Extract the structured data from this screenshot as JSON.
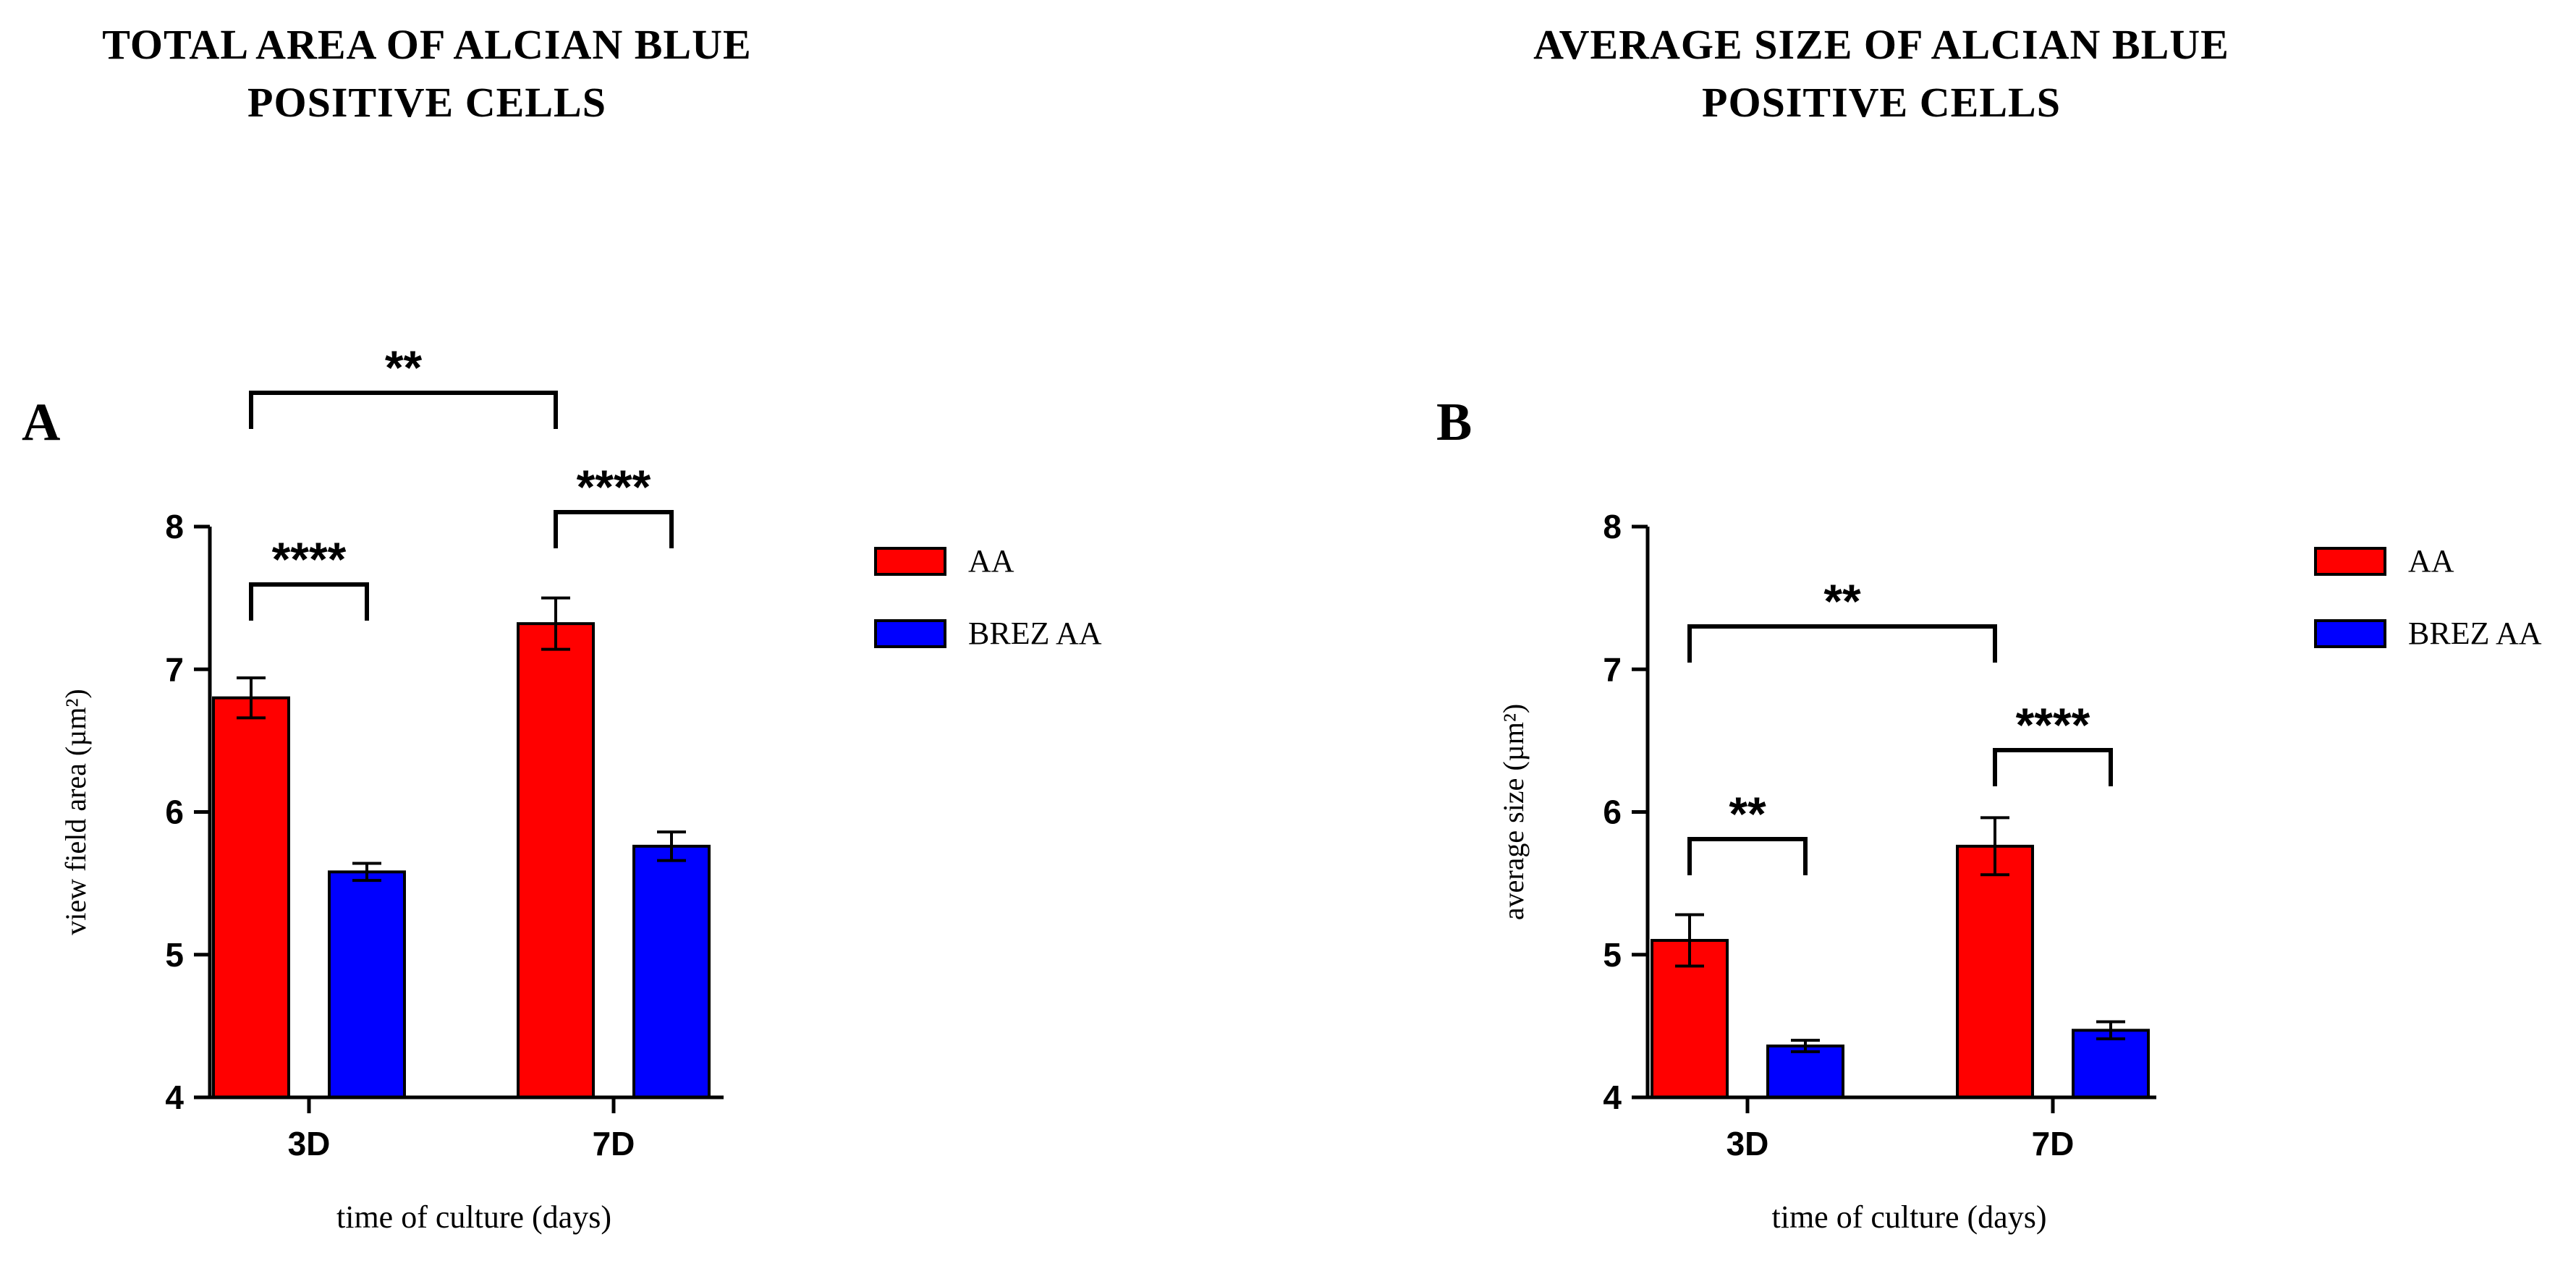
{
  "titles": {
    "left": [
      "TOTAL AREA OF ALCIAN BLUE",
      "POSITIVE CELLS"
    ],
    "right": [
      "AVERAGE SIZE OF ALCIAN BLUE",
      "POSITIVE CELLS"
    ]
  },
  "colors": {
    "AA": "#ff0000",
    "BREZ AA": "#0000ff",
    "axis": "#000000"
  },
  "chart_data": [
    {
      "type": "bar",
      "panel": "A",
      "title": "TOTAL AREA OF ALCIAN BLUE POSITIVE CELLS",
      "xlabel": "time of culture (days)",
      "ylabel": "view field area (µm²)",
      "ylim": [
        4,
        8
      ],
      "yticks": [
        "4",
        "5",
        "6",
        "7",
        "8"
      ],
      "categories": [
        "3D",
        "7D"
      ],
      "legend": [
        "AA",
        "BREZ AA"
      ],
      "series": [
        {
          "name": "AA",
          "values": [
            6.8,
            7.32
          ],
          "errors": [
            0.14,
            0.18
          ]
        },
        {
          "name": "BREZ AA",
          "values": [
            5.58,
            5.76
          ],
          "errors": [
            0.06,
            0.1
          ]
        }
      ],
      "significance": [
        {
          "label": "****",
          "between": "3D AA vs 3D BREZ AA"
        },
        {
          "label": "****",
          "between": "7D AA vs 7D BREZ AA"
        },
        {
          "label": "**",
          "between": "3D AA vs 7D AA"
        }
      ]
    },
    {
      "type": "bar",
      "panel": "B",
      "title": "AVERAGE SIZE OF ALCIAN BLUE POSITIVE CELLS",
      "xlabel": "time of culture (days)",
      "ylabel": "average size (µm²)",
      "ylim": [
        4,
        8
      ],
      "yticks": [
        "4",
        "5",
        "6",
        "7",
        "8"
      ],
      "categories": [
        "3D",
        "7D"
      ],
      "legend": [
        "AA",
        "BREZ AA"
      ],
      "series": [
        {
          "name": "AA",
          "values": [
            5.1,
            5.76
          ],
          "errors": [
            0.18,
            0.2
          ]
        },
        {
          "name": "BREZ AA",
          "values": [
            4.36,
            4.47
          ],
          "errors": [
            0.04,
            0.06
          ]
        }
      ],
      "significance": [
        {
          "label": "**",
          "between": "3D AA vs 3D BREZ AA"
        },
        {
          "label": "****",
          "between": "7D AA vs 7D BREZ AA"
        },
        {
          "label": "**",
          "between": "3D AA vs 7D AA"
        }
      ]
    }
  ]
}
